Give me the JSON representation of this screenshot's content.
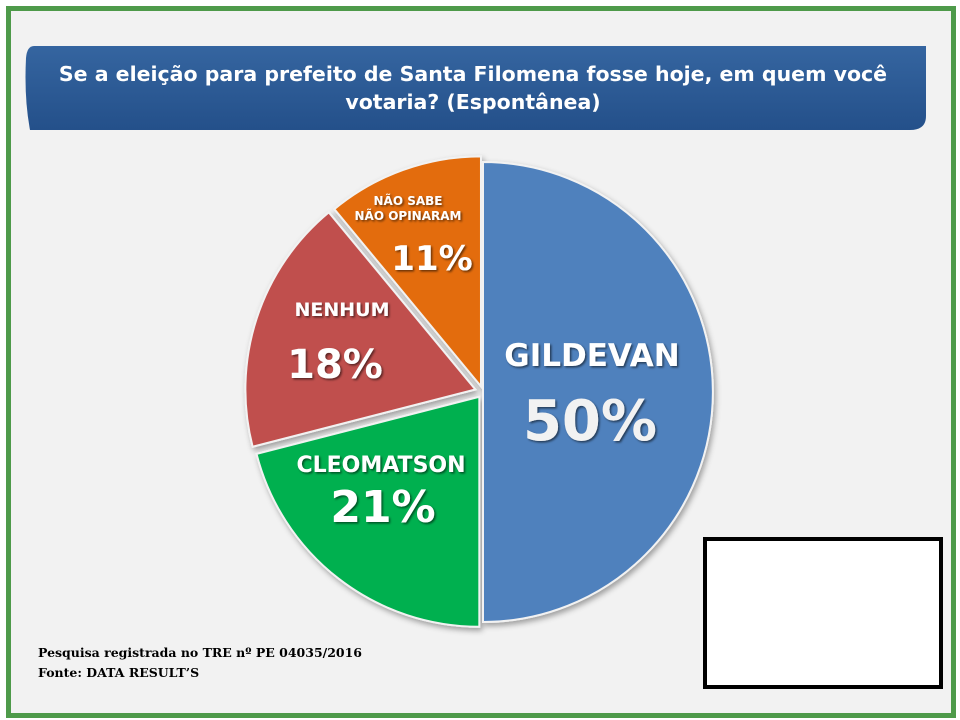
{
  "title": "Se a eleição para prefeito de Santa Filomena fosse hoje, em quem você votaria? (Espontânea)",
  "chart_data": {
    "type": "pie",
    "slices": [
      {
        "label": "GILDEVAN",
        "value": 50,
        "value_text": "50%",
        "color": "#4f81bd"
      },
      {
        "label": "CLEOMATSON",
        "value": 21,
        "value_text": "21%",
        "color": "#00b050"
      },
      {
        "label": "NENHUM",
        "value": 18,
        "value_text": "18%",
        "color": "#c0504d"
      },
      {
        "label": "NÃO SABE\nNÃO OPINARAM",
        "label_line1": "NÃO SABE",
        "label_line2": "NÃO OPINARAM",
        "value": 11,
        "value_text": "11%",
        "color": "#e36c09"
      }
    ],
    "title": "Se a eleição para prefeito de Santa Filomena fosse hoje, em quem você votaria? (Espontânea)",
    "legend": "none"
  },
  "footer": {
    "line1": "Pesquisa registrada no TRE nº PE 04035/2016",
    "line2": "Fonte: DATA RESULT’S"
  },
  "colors": {
    "frame_border": "#4e9a4a",
    "banner": "#2a5a93",
    "background": "#f2f2f2"
  }
}
